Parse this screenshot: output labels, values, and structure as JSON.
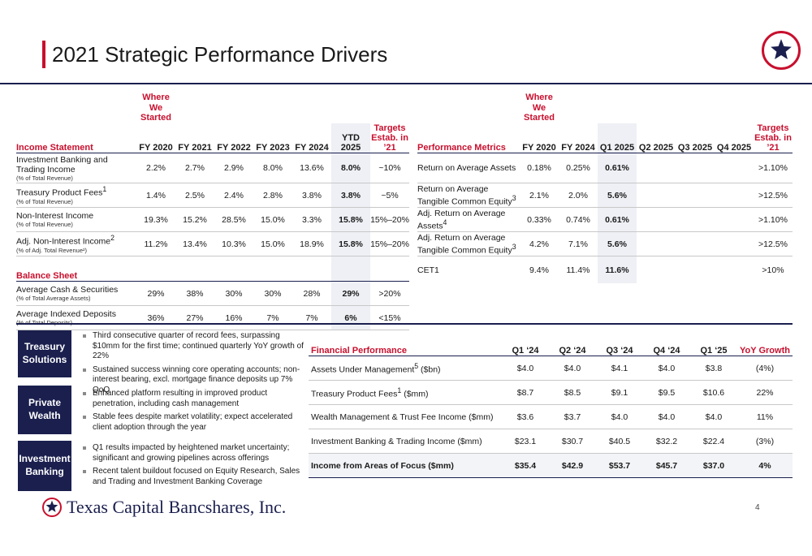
{
  "title": "2021 Strategic Performance Drivers",
  "logo_icon": "star-circle-icon",
  "page_number": "4",
  "company_name": "Texas Capital Bancshares, Inc.",
  "income": {
    "where_started": "Where We Started",
    "section_label": "Income Statement",
    "columns": [
      "FY 2020",
      "FY 2021",
      "FY 2022",
      "FY 2023",
      "FY 2024",
      "YTD 2025",
      "Targets Estab. in ’21"
    ],
    "rows": [
      {
        "label": "Investment Banking and Trading Income",
        "sup": "",
        "sub": "(% of Total Revenue)",
        "values": [
          "2.2%",
          "2.7%",
          "2.9%",
          "8.0%",
          "13.6%",
          "8.0%",
          "~10%"
        ]
      },
      {
        "label": "Treasury Product Fees",
        "sup": "1",
        "sub": "(% of Total Revenue)",
        "values": [
          "1.4%",
          "2.5%",
          "2.4%",
          "2.8%",
          "3.8%",
          "3.8%",
          "~5%"
        ]
      },
      {
        "label": "Non-Interest Income",
        "sup": "",
        "sub": "(% of Total Revenue)",
        "values": [
          "19.3%",
          "15.2%",
          "28.5%",
          "15.0%",
          "3.3%",
          "15.8%",
          "15%–20%"
        ]
      },
      {
        "label": "Adj. Non-Interest Income",
        "sup": "2",
        "sub": "(% of Adj. Total Revenue²)",
        "values": [
          "11.2%",
          "13.4%",
          "10.3%",
          "15.0%",
          "18.9%",
          "15.8%",
          "15%–20%"
        ]
      }
    ],
    "balance_label": "Balance Sheet",
    "balance_rows": [
      {
        "label": "Average Cash & Securities",
        "sub": "(% of Total Average Assets)",
        "values": [
          "29%",
          "38%",
          "30%",
          "30%",
          "28%",
          "29%",
          ">20%"
        ]
      },
      {
        "label": "Average Indexed Deposits",
        "sub": "(% of Total Deposits)",
        "values": [
          "36%",
          "27%",
          "16%",
          "7%",
          "7%",
          "6%",
          "<15%"
        ]
      }
    ]
  },
  "performance": {
    "where_started": "Where We Started",
    "section_label": "Performance Metrics",
    "columns": [
      "FY 2020",
      "FY 2024",
      "Q1 2025",
      "Q2 2025",
      "Q3 2025",
      "Q4 2025",
      "Targets Estab. in ’21"
    ],
    "rows": [
      {
        "label": "Return on Average Assets",
        "sup": "",
        "values": [
          "0.18%",
          "0.25%",
          "0.61%",
          "",
          "",
          "",
          ">1.10%"
        ]
      },
      {
        "label": "Return on Average Tangible Common Equity",
        "sup": "3",
        "values": [
          "2.1%",
          "2.0%",
          "5.6%",
          "",
          "",
          "",
          ">12.5%"
        ]
      },
      {
        "label": "Adj. Return on Average Assets",
        "sup": "4",
        "values": [
          "0.33%",
          "0.74%",
          "0.61%",
          "",
          "",
          "",
          ">1.10%"
        ]
      },
      {
        "label": "Adj. Return on Average Tangible Common Equity",
        "sup": "3",
        "values": [
          "4.2%",
          "7.1%",
          "5.6%",
          "",
          "",
          "",
          ">12.5%"
        ]
      },
      {
        "label": "CET1",
        "sup": "",
        "values": [
          "9.4%",
          "11.4%",
          "11.6%",
          "",
          "",
          "",
          ">10%"
        ]
      }
    ]
  },
  "segments": [
    {
      "name": "Treasury Solutions",
      "bullets": [
        "Third consecutive quarter of record fees, surpassing $10mm for the first time; continued quarterly YoY growth of 22%",
        "Sustained success winning core operating accounts; non-interest bearing, excl. mortgage finance deposits up 7% QoQ"
      ]
    },
    {
      "name": "Private Wealth",
      "bullets": [
        "Enhanced platform resulting in improved product penetration, including cash management",
        "Stable fees despite market volatility; expect accelerated client adoption through the year"
      ]
    },
    {
      "name": "Investment Banking",
      "bullets": [
        "Q1 results impacted by heightened market uncertainty; significant and growing pipelines across offerings",
        "Recent talent buildout focused on Equity Research, Sales and Trading and Investment Banking Coverage"
      ]
    }
  ],
  "financial": {
    "section_label": "Financial Performance",
    "columns": [
      "Q1 ‘24",
      "Q2 ‘24",
      "Q3 ‘24",
      "Q4 ‘24",
      "Q1 ‘25",
      "YoY Growth"
    ],
    "rows": [
      {
        "label": "Assets Under Management",
        "sup": "5",
        "suffix": " ($bn)",
        "values": [
          "$4.0",
          "$4.0",
          "$4.1",
          "$4.0",
          "$3.8",
          "(4%)"
        ]
      },
      {
        "label": "Treasury Product Fees",
        "sup": "1",
        "suffix": " ($mm)",
        "values": [
          "$8.7",
          "$8.5",
          "$9.1",
          "$9.5",
          "$10.6",
          "22%"
        ]
      },
      {
        "label": "Wealth Management & Trust Fee Income ($mm)",
        "sup": "",
        "suffix": "",
        "values": [
          "$3.6",
          "$3.7",
          "$4.0",
          "$4.0",
          "$4.0",
          "11%"
        ]
      },
      {
        "label": "Investment Banking & Trading Income ($mm)",
        "sup": "",
        "suffix": "",
        "values": [
          "$23.1",
          "$30.7",
          "$40.5",
          "$32.2",
          "$22.4",
          "(3%)"
        ]
      }
    ],
    "total": {
      "label": "Income from Areas of Focus ($mm)",
      "values": [
        "$35.4",
        "$42.9",
        "$53.7",
        "$45.7",
        "$37.0",
        "4%"
      ]
    }
  },
  "colors": {
    "accent": "#c8102e",
    "navy": "#1a1f4e",
    "highlight": "#eef0f5"
  }
}
